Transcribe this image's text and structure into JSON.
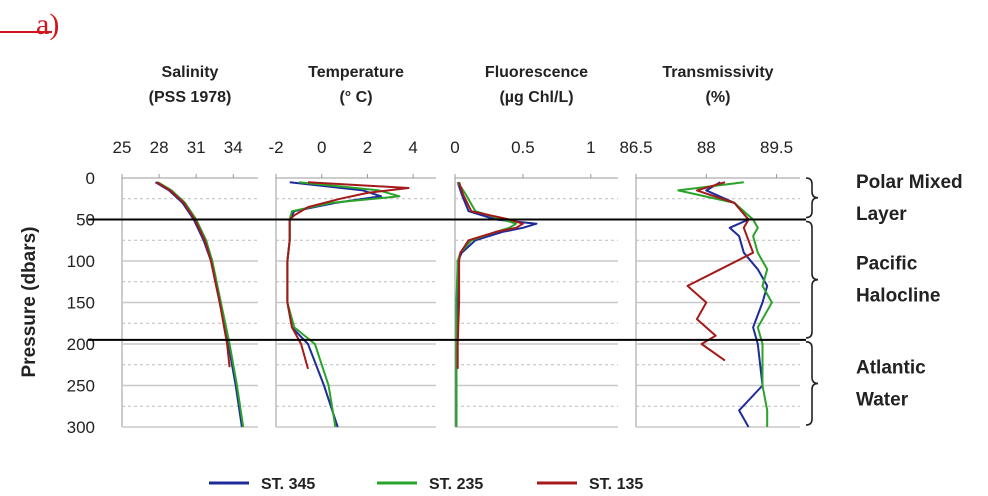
{
  "panel_label": "a)",
  "colors": {
    "st345": "#1f2a9b",
    "st235": "#2aa32a",
    "st135": "#a41a1a"
  },
  "y_axis": {
    "label": "Pressure (dbars)",
    "ticks": [
      0,
      50,
      100,
      150,
      200,
      250,
      300
    ]
  },
  "chart_data": [
    {
      "type": "line",
      "title": "Salinity\n(PSS 1978)",
      "title_lines": [
        "Salinity",
        "(PSS 1978)"
      ],
      "xlim": [
        25,
        36
      ],
      "ylim": [
        300,
        0
      ],
      "xticks": [
        "25",
        "28",
        "31",
        "34"
      ],
      "xtick_values": [
        25,
        28,
        31,
        34
      ],
      "series": [
        {
          "name": "ST. 345",
          "pressure": [
            5,
            15,
            30,
            50,
            75,
            100,
            150,
            200,
            250,
            300
          ],
          "values": [
            27.7,
            28.8,
            29.9,
            30.8,
            31.6,
            32.2,
            32.9,
            33.6,
            34.2,
            34.7
          ]
        },
        {
          "name": "ST. 235",
          "pressure": [
            5,
            15,
            30,
            50,
            75,
            100,
            150,
            200,
            250,
            300
          ],
          "values": [
            27.9,
            29.0,
            30.1,
            31.0,
            31.8,
            32.3,
            33.0,
            33.7,
            34.3,
            34.8
          ]
        },
        {
          "name": "ST. 135",
          "pressure": [
            5,
            15,
            30,
            50,
            75,
            100,
            150,
            200,
            228
          ],
          "values": [
            27.8,
            28.9,
            30.0,
            30.9,
            31.7,
            32.2,
            32.9,
            33.5,
            33.7
          ]
        }
      ]
    },
    {
      "type": "line",
      "title": "Temperature\n(° C)",
      "title_lines": [
        "Temperature",
        "(° C)"
      ],
      "xlim": [
        -2,
        5
      ],
      "ylim": [
        300,
        0
      ],
      "xticks": [
        "-2",
        "0",
        "2",
        "4"
      ],
      "xtick_values": [
        -2,
        0,
        2,
        4
      ],
      "series": [
        {
          "name": "ST. 345",
          "pressure": [
            5,
            15,
            22,
            30,
            40,
            50,
            75,
            100,
            150,
            180,
            200,
            250,
            300
          ],
          "values": [
            -1.4,
            1.8,
            2.6,
            0.6,
            -1.2,
            -1.4,
            -1.4,
            -1.5,
            -1.5,
            -1.3,
            -0.6,
            0.1,
            0.7
          ]
        },
        {
          "name": "ST. 235",
          "pressure": [
            5,
            15,
            22,
            30,
            40,
            50,
            75,
            100,
            150,
            180,
            200,
            250,
            300
          ],
          "values": [
            -1.0,
            2.5,
            3.4,
            0.4,
            -1.3,
            -1.4,
            -1.4,
            -1.5,
            -1.5,
            -1.2,
            -0.3,
            0.3,
            0.6
          ]
        },
        {
          "name": "ST. 135",
          "pressure": [
            5,
            12,
            18,
            25,
            35,
            45,
            50,
            75,
            100,
            150,
            180,
            200,
            230
          ],
          "values": [
            -0.6,
            3.8,
            2.0,
            0.8,
            -0.6,
            -1.2,
            -1.4,
            -1.4,
            -1.5,
            -1.5,
            -1.3,
            -0.9,
            -0.6
          ]
        }
      ]
    },
    {
      "type": "line",
      "title": "Fluorescence\n(µg Chl/L)",
      "title_lines": [
        "Fluorescence",
        "(µg Chl/L)"
      ],
      "xlim": [
        0,
        1.2
      ],
      "ylim": [
        300,
        0
      ],
      "xticks": [
        "0",
        "0.5",
        "1"
      ],
      "xtick_values": [
        0,
        0.5,
        1
      ],
      "series": [
        {
          "name": "ST. 345",
          "pressure": [
            5,
            20,
            40,
            50,
            55,
            60,
            65,
            75,
            90,
            100,
            150,
            200,
            250,
            300
          ],
          "values": [
            0.02,
            0.05,
            0.1,
            0.3,
            0.6,
            0.5,
            0.35,
            0.15,
            0.05,
            0.02,
            0.02,
            0.01,
            0.01,
            0.01
          ]
        },
        {
          "name": "ST. 235",
          "pressure": [
            5,
            20,
            40,
            50,
            55,
            60,
            65,
            75,
            90,
            100,
            150,
            200,
            250,
            300
          ],
          "values": [
            0.02,
            0.08,
            0.15,
            0.35,
            0.45,
            0.4,
            0.3,
            0.12,
            0.04,
            0.02,
            0.01,
            0.01,
            0.01,
            0.01
          ]
        },
        {
          "name": "ST. 135",
          "pressure": [
            5,
            20,
            40,
            50,
            55,
            60,
            65,
            75,
            90,
            100,
            150,
            200,
            230
          ],
          "values": [
            0.03,
            0.06,
            0.12,
            0.4,
            0.5,
            0.45,
            0.3,
            0.1,
            0.04,
            0.03,
            0.03,
            0.02,
            0.02
          ]
        }
      ]
    },
    {
      "type": "line",
      "title": "Transmissivity\n(%)",
      "title_lines": [
        "Transmissivity",
        "(%)"
      ],
      "xlim": [
        86.5,
        90.0
      ],
      "ylim": [
        300,
        0
      ],
      "xticks": [
        "86.5",
        "88",
        "89.5"
      ],
      "xtick_values": [
        86.5,
        88,
        89.5
      ],
      "series": [
        {
          "name": "ST. 345",
          "pressure": [
            5,
            15,
            30,
            50,
            60,
            70,
            90,
            110,
            130,
            150,
            180,
            200,
            250,
            280,
            300
          ],
          "values": [
            88.3,
            88.0,
            88.6,
            88.9,
            88.5,
            88.7,
            88.8,
            89.1,
            89.3,
            89.2,
            89.0,
            89.1,
            89.2,
            88.7,
            88.9
          ]
        },
        {
          "name": "ST. 235",
          "pressure": [
            5,
            15,
            30,
            50,
            60,
            70,
            90,
            110,
            130,
            150,
            180,
            200,
            250,
            280,
            300
          ],
          "values": [
            88.8,
            87.4,
            88.6,
            89.0,
            89.1,
            89.0,
            89.1,
            89.3,
            89.2,
            89.4,
            89.1,
            89.2,
            89.2,
            89.3,
            89.3
          ]
        },
        {
          "name": "ST. 135",
          "pressure": [
            5,
            15,
            30,
            50,
            60,
            90,
            110,
            130,
            150,
            170,
            190,
            200,
            220
          ],
          "values": [
            88.4,
            87.8,
            88.6,
            88.9,
            88.8,
            89.0,
            88.3,
            87.6,
            88.0,
            87.8,
            88.2,
            87.9,
            88.4
          ]
        }
      ]
    }
  ],
  "water_masses": [
    {
      "label_lines": [
        "Polar Mixed",
        "Layer"
      ],
      "range": [
        0,
        50
      ]
    },
    {
      "label_lines": [
        "Pacific",
        "Halocline"
      ],
      "range": [
        50,
        195
      ]
    },
    {
      "label_lines": [
        "Atlantic",
        "Water"
      ],
      "range": [
        195,
        300
      ]
    }
  ],
  "boundaries": [
    50,
    195
  ],
  "legend": [
    {
      "name": "ST. 345",
      "color_key": "st345"
    },
    {
      "name": "ST. 235",
      "color_key": "st235"
    },
    {
      "name": "ST. 135",
      "color_key": "st135"
    }
  ]
}
